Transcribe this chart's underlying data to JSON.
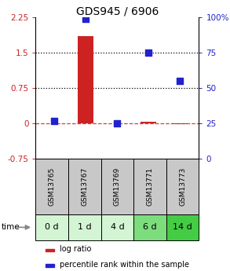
{
  "title": "GDS945 / 6906",
  "samples": [
    "GSM13765",
    "GSM13767",
    "GSM13769",
    "GSM13771",
    "GSM13773"
  ],
  "time_labels": [
    "0 d",
    "1 d",
    "4 d",
    "6 d",
    "14 d"
  ],
  "log_ratio": [
    0.0,
    1.85,
    0.0,
    0.04,
    -0.02
  ],
  "percentile_rank": [
    27,
    99,
    25,
    75,
    55
  ],
  "ylim_left": [
    -0.75,
    2.25
  ],
  "ylim_right": [
    0,
    100
  ],
  "yticks_left": [
    -0.75,
    0.0,
    0.75,
    1.5,
    2.25
  ],
  "yticks_right": [
    0,
    25,
    50,
    75,
    100
  ],
  "hlines_dotted": [
    0.75,
    1.5
  ],
  "bar_color": "#cc2222",
  "dot_color": "#2222cc",
  "bar_width": 0.5,
  "dot_size": 40,
  "zero_line_color": "#cc4444",
  "zero_line_style": "--",
  "hline_style": ":",
  "hline_color": "black",
  "bg_color": "white",
  "sample_box_color": "#c8c8c8",
  "time_box_colors": [
    "#d4f5d4",
    "#d4f5d4",
    "#d4f5d4",
    "#7ddd7d",
    "#44cc44"
  ],
  "legend_bar_color": "#cc2222",
  "legend_dot_color": "#2222cc",
  "title_fontsize": 10,
  "tick_fontsize": 7.5,
  "sample_fontsize": 6.5,
  "time_fontsize": 8
}
